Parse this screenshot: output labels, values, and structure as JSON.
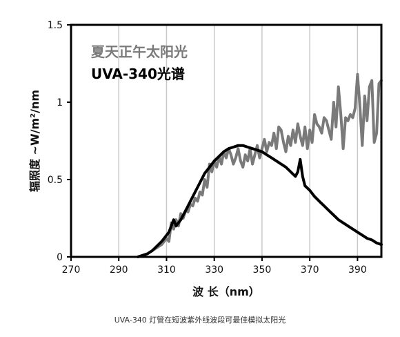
{
  "chart_data": {
    "type": "line",
    "xlabel": "波 长（nm）",
    "ylabel": "辐照度 ~W/m²/nm",
    "xlim": [
      270,
      400
    ],
    "ylim": [
      0,
      1.5
    ],
    "xticks": [
      270,
      290,
      310,
      330,
      350,
      370,
      390
    ],
    "xtick_labels": [
      "270",
      "290",
      "310",
      "330",
      "350",
      "370",
      "390"
    ],
    "yticks": [
      0,
      0.5,
      1,
      1.5
    ],
    "ytick_labels": [
      "0",
      "0.5",
      "1",
      "1.5"
    ],
    "grid": "vertical",
    "legend_position": "top-left",
    "series": [
      {
        "name": "夏天正午太阳光",
        "color": "#7a7a7a",
        "x": [
          298,
          300,
          302,
          304,
          306,
          308,
          310,
          311,
          312,
          313,
          314,
          315,
          316,
          317,
          318,
          319,
          320,
          321,
          322,
          323,
          324,
          325,
          326,
          327,
          328,
          329,
          330,
          331,
          332,
          333,
          334,
          335,
          336,
          337,
          338,
          339,
          340,
          341,
          342,
          343,
          344,
          345,
          346,
          347,
          348,
          349,
          350,
          351,
          352,
          353,
          354,
          355,
          356,
          357,
          358,
          359,
          360,
          361,
          362,
          363,
          364,
          365,
          366,
          367,
          368,
          369,
          370,
          371,
          372,
          373,
          374,
          375,
          376,
          377,
          378,
          379,
          380,
          381,
          382,
          383,
          384,
          385,
          386,
          387,
          388,
          389,
          390,
          391,
          392,
          393,
          394,
          395,
          396,
          397,
          398,
          399,
          400
        ],
        "y": [
          0,
          0.01,
          0.02,
          0.04,
          0.06,
          0.08,
          0.12,
          0.1,
          0.22,
          0.18,
          0.24,
          0.2,
          0.28,
          0.25,
          0.3,
          0.29,
          0.34,
          0.33,
          0.38,
          0.36,
          0.42,
          0.4,
          0.5,
          0.45,
          0.6,
          0.55,
          0.62,
          0.58,
          0.65,
          0.6,
          0.68,
          0.64,
          0.7,
          0.66,
          0.6,
          0.64,
          0.7,
          0.62,
          0.58,
          0.66,
          0.62,
          0.7,
          0.6,
          0.66,
          0.72,
          0.64,
          0.7,
          0.76,
          0.68,
          0.74,
          0.72,
          0.8,
          0.7,
          0.84,
          0.82,
          0.74,
          0.68,
          0.78,
          0.72,
          0.82,
          0.74,
          0.86,
          0.78,
          0.72,
          0.84,
          0.7,
          0.82,
          0.74,
          0.92,
          0.86,
          0.84,
          0.8,
          0.9,
          0.88,
          0.82,
          0.76,
          1.0,
          0.84,
          1.1,
          0.92,
          0.7,
          0.9,
          0.88,
          0.92,
          0.9,
          0.96,
          1.18,
          0.98,
          0.72,
          1.04,
          0.88,
          1.1,
          1.14,
          0.74,
          0.8,
          1.12,
          1.14
        ]
      },
      {
        "name": "UVA-340光谱",
        "color": "#000000",
        "x": [
          298,
          300,
          302,
          304,
          306,
          308,
          310,
          311,
          312,
          313,
          314,
          316,
          318,
          320,
          322,
          324,
          326,
          328,
          330,
          332,
          334,
          336,
          338,
          340,
          342,
          344,
          346,
          348,
          350,
          352,
          354,
          356,
          358,
          360,
          362,
          364,
          365,
          366,
          367,
          368,
          370,
          372,
          374,
          376,
          378,
          380,
          382,
          384,
          386,
          388,
          390,
          392,
          394,
          396,
          398,
          400
        ],
        "y": [
          0,
          0.01,
          0.02,
          0.04,
          0.07,
          0.1,
          0.14,
          0.16,
          0.2,
          0.24,
          0.2,
          0.24,
          0.3,
          0.36,
          0.42,
          0.48,
          0.54,
          0.58,
          0.62,
          0.65,
          0.68,
          0.7,
          0.71,
          0.72,
          0.72,
          0.71,
          0.7,
          0.69,
          0.68,
          0.66,
          0.64,
          0.62,
          0.6,
          0.58,
          0.55,
          0.52,
          0.55,
          0.63,
          0.52,
          0.46,
          0.43,
          0.39,
          0.36,
          0.33,
          0.3,
          0.27,
          0.24,
          0.22,
          0.2,
          0.18,
          0.16,
          0.14,
          0.12,
          0.11,
          0.09,
          0.08
        ]
      }
    ]
  },
  "caption": "UVA-340 灯管在短波紫外线波段可最佳模拟太阳光"
}
